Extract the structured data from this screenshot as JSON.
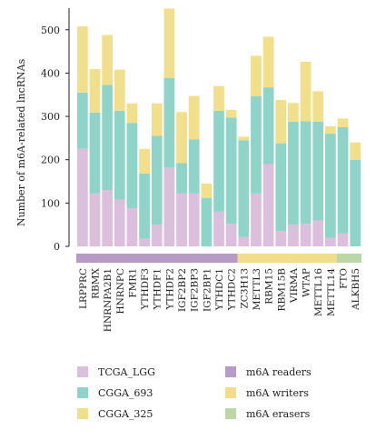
{
  "chart_data": {
    "type": "bar",
    "stacked": true,
    "ylabel": "Number of m6A-related lncRNAs",
    "ylim": [
      0,
      550
    ],
    "yticks": [
      0,
      100,
      200,
      300,
      400,
      500
    ],
    "grid": false,
    "categories": [
      "LRPPRC",
      "RBMX",
      "HNRNPA2B1",
      "HNRNPC",
      "FMR1",
      "YTHDF3",
      "YTHDF1",
      "YTHDF2",
      "IGF2BP2",
      "IGF2BP3",
      "IGF2BP1",
      "YTHDC1",
      "YTHDC2",
      "ZC3H13",
      "METTL3",
      "RBM15",
      "RBM15B",
      "VIRMA",
      "WTAP",
      "METTL16",
      "METTL14",
      "FTO",
      "ALKBH5"
    ],
    "series": [
      {
        "name": "TCGA_LGG",
        "color": "#dcbfdc",
        "values": [
          225,
          122,
          130,
          108,
          88,
          18,
          50,
          182,
          122,
          122,
          0,
          80,
          52,
          22,
          122,
          190,
          35,
          50,
          52,
          60,
          20,
          30,
          0
        ]
      },
      {
        "name": "CGGA_693",
        "color": "#8fd4c8",
        "values": [
          130,
          187,
          243,
          205,
          197,
          150,
          205,
          207,
          70,
          125,
          112,
          233,
          245,
          223,
          225,
          177,
          203,
          238,
          237,
          228,
          240,
          245,
          200
        ]
      },
      {
        "name": "CGGA_325",
        "color": "#f2df8c",
        "values": [
          153,
          100,
          115,
          95,
          45,
          57,
          75,
          160,
          118,
          100,
          33,
          57,
          18,
          8,
          93,
          117,
          100,
          43,
          137,
          70,
          17,
          20,
          40
        ]
      }
    ],
    "groups": [
      {
        "name": "m6A readers",
        "color": "#b79ac8",
        "start": 0,
        "end": 12
      },
      {
        "name": "m6A writers",
        "color": "#f3dd8a",
        "start": 13,
        "end": 20
      },
      {
        "name": "m6A erasers",
        "color": "#b9d8a6",
        "start": 21,
        "end": 22
      }
    ],
    "legend_position": "bottom"
  }
}
